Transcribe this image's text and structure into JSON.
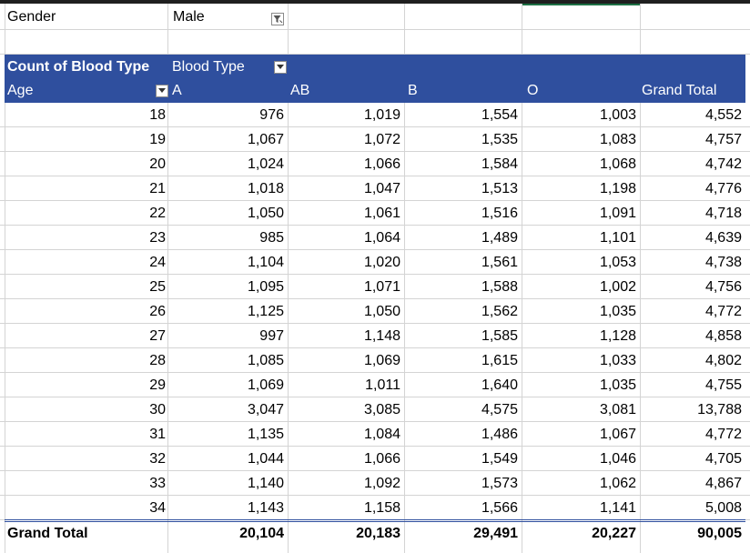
{
  "filter": {
    "field_label": "Gender",
    "field_value": "Male",
    "icon": "filter-applied-icon"
  },
  "pivot": {
    "value_field": "Count of Blood Type",
    "column_field": "Blood Type",
    "row_field": "Age",
    "columns": [
      "A",
      "AB",
      "B",
      "O",
      "Grand Total"
    ],
    "rows": [
      {
        "age": "18",
        "values": [
          "976",
          "1,019",
          "1,554",
          "1,003",
          "4,552"
        ]
      },
      {
        "age": "19",
        "values": [
          "1,067",
          "1,072",
          "1,535",
          "1,083",
          "4,757"
        ]
      },
      {
        "age": "20",
        "values": [
          "1,024",
          "1,066",
          "1,584",
          "1,068",
          "4,742"
        ]
      },
      {
        "age": "21",
        "values": [
          "1,018",
          "1,047",
          "1,513",
          "1,198",
          "4,776"
        ]
      },
      {
        "age": "22",
        "values": [
          "1,050",
          "1,061",
          "1,516",
          "1,091",
          "4,718"
        ]
      },
      {
        "age": "23",
        "values": [
          "985",
          "1,064",
          "1,489",
          "1,101",
          "4,639"
        ]
      },
      {
        "age": "24",
        "values": [
          "1,104",
          "1,020",
          "1,561",
          "1,053",
          "4,738"
        ]
      },
      {
        "age": "25",
        "values": [
          "1,095",
          "1,071",
          "1,588",
          "1,002",
          "4,756"
        ]
      },
      {
        "age": "26",
        "values": [
          "1,125",
          "1,050",
          "1,562",
          "1,035",
          "4,772"
        ]
      },
      {
        "age": "27",
        "values": [
          "997",
          "1,148",
          "1,585",
          "1,128",
          "4,858"
        ]
      },
      {
        "age": "28",
        "values": [
          "1,085",
          "1,069",
          "1,615",
          "1,033",
          "4,802"
        ]
      },
      {
        "age": "29",
        "values": [
          "1,069",
          "1,011",
          "1,640",
          "1,035",
          "4,755"
        ]
      },
      {
        "age": "30",
        "values": [
          "3,047",
          "3,085",
          "4,575",
          "3,081",
          "13,788"
        ]
      },
      {
        "age": "31",
        "values": [
          "1,135",
          "1,084",
          "1,486",
          "1,067",
          "4,772"
        ]
      },
      {
        "age": "32",
        "values": [
          "1,044",
          "1,066",
          "1,549",
          "1,046",
          "4,705"
        ]
      },
      {
        "age": "33",
        "values": [
          "1,140",
          "1,092",
          "1,573",
          "1,062",
          "4,867"
        ]
      },
      {
        "age": "34",
        "values": [
          "1,143",
          "1,158",
          "1,566",
          "1,141",
          "5,008"
        ]
      }
    ],
    "grand_total": {
      "label": "Grand Total",
      "values": [
        "20,104",
        "20,183",
        "29,491",
        "20,227",
        "90,005"
      ]
    }
  },
  "colors": {
    "header_bg": "#2f4f9e",
    "gridline": "#d4d4d4",
    "active_cell_accent": "#1e7145"
  }
}
